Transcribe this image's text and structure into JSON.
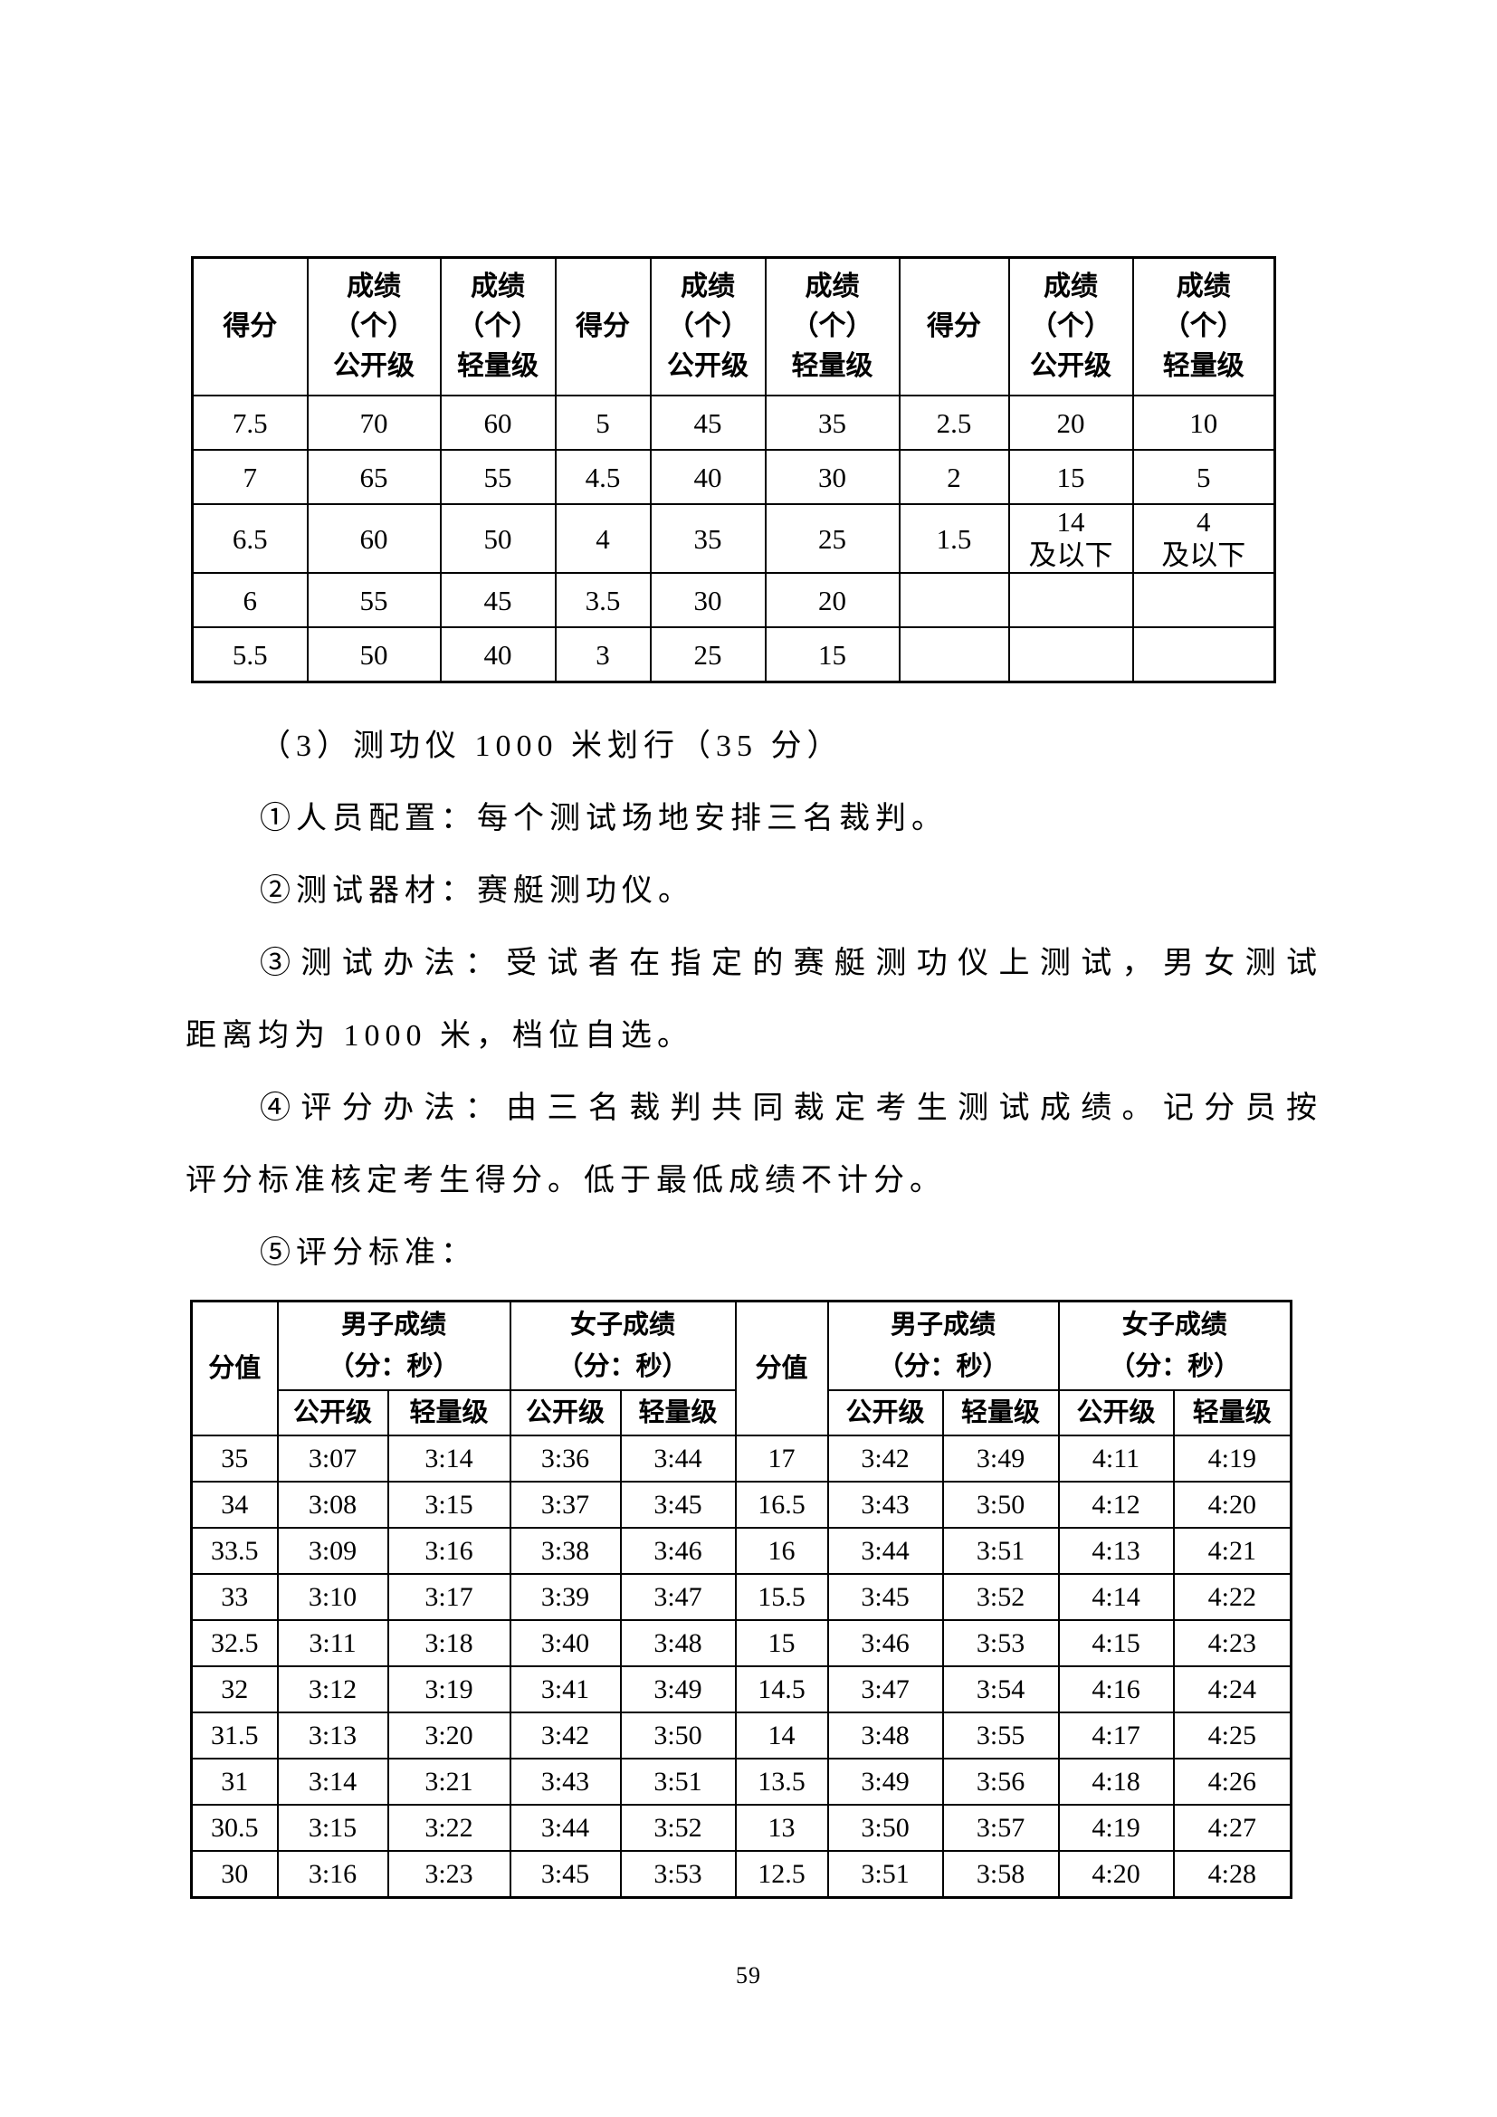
{
  "page_number": "59",
  "table1": {
    "headers": {
      "score": "得分",
      "open": "成绩\n（个）\n公开级",
      "light": "成绩\n（个）\n轻量级"
    },
    "rows": [
      [
        "7.5",
        "70",
        "60",
        "5",
        "45",
        "35",
        "2.5",
        "20",
        "10"
      ],
      [
        "7",
        "65",
        "55",
        "4.5",
        "40",
        "30",
        "2",
        "15",
        "5"
      ],
      [
        "6.5",
        "60",
        "50",
        "4",
        "35",
        "25",
        "1.5",
        "14\n及以下",
        "4\n及以下"
      ],
      [
        "6",
        "55",
        "45",
        "3.5",
        "30",
        "20",
        "",
        "",
        ""
      ],
      [
        "5.5",
        "50",
        "40",
        "3",
        "25",
        "15",
        "",
        "",
        ""
      ]
    ]
  },
  "paragraphs": {
    "heading": "（3）测功仪 1000 米划行（35 分）",
    "line1": "①人员配置：每个测试场地安排三名裁判。",
    "line2": "②测试器材：赛艇测功仪。",
    "line3a": "③测试办法：受试者在指定的赛艇测功仪上测试，男女测试",
    "line3b": "距离均为 1000 米，档位自选。",
    "line4a": "④评分办法：由三名裁判共同裁定考生测试成绩。记分员按",
    "line4b": "评分标准核定考生得分。低于最低成绩不计分。",
    "line5": "⑤评分标准："
  },
  "table2": {
    "headers": {
      "score": "分值",
      "male": "男子成绩\n（分：秒）",
      "female": "女子成绩\n（分：秒）",
      "open": "公开级",
      "light": "轻量级"
    },
    "rows": [
      [
        "35",
        "3:07",
        "3:14",
        "3:36",
        "3:44",
        "17",
        "3:42",
        "3:49",
        "4:11",
        "4:19"
      ],
      [
        "34",
        "3:08",
        "3:15",
        "3:37",
        "3:45",
        "16.5",
        "3:43",
        "3:50",
        "4:12",
        "4:20"
      ],
      [
        "33.5",
        "3:09",
        "3:16",
        "3:38",
        "3:46",
        "16",
        "3:44",
        "3:51",
        "4:13",
        "4:21"
      ],
      [
        "33",
        "3:10",
        "3:17",
        "3:39",
        "3:47",
        "15.5",
        "3:45",
        "3:52",
        "4:14",
        "4:22"
      ],
      [
        "32.5",
        "3:11",
        "3:18",
        "3:40",
        "3:48",
        "15",
        "3:46",
        "3:53",
        "4:15",
        "4:23"
      ],
      [
        "32",
        "3:12",
        "3:19",
        "3:41",
        "3:49",
        "14.5",
        "3:47",
        "3:54",
        "4:16",
        "4:24"
      ],
      [
        "31.5",
        "3:13",
        "3:20",
        "3:42",
        "3:50",
        "14",
        "3:48",
        "3:55",
        "4:17",
        "4:25"
      ],
      [
        "31",
        "3:14",
        "3:21",
        "3:43",
        "3:51",
        "13.5",
        "3:49",
        "3:56",
        "4:18",
        "4:26"
      ],
      [
        "30.5",
        "3:15",
        "3:22",
        "3:44",
        "3:52",
        "13",
        "3:50",
        "3:57",
        "4:19",
        "4:27"
      ],
      [
        "30",
        "3:16",
        "3:23",
        "3:45",
        "3:53",
        "12.5",
        "3:51",
        "3:58",
        "4:20",
        "4:28"
      ]
    ]
  }
}
